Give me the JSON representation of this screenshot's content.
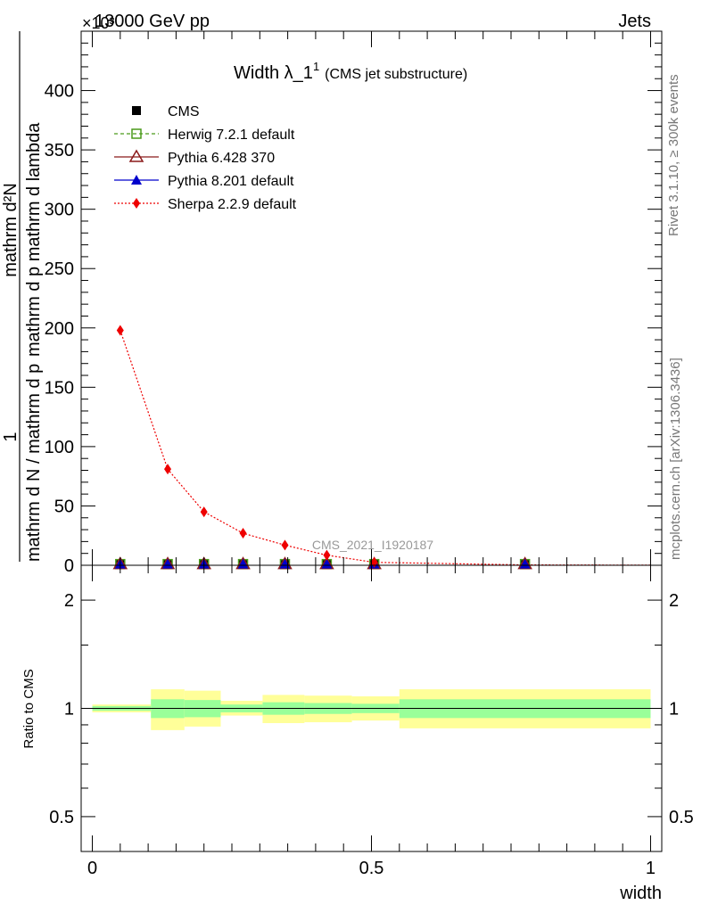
{
  "header": {
    "left": "13000 GeV pp",
    "right": "Jets",
    "exponent": "×10³"
  },
  "side_labels": {
    "rivet": "Rivet 3.1.10, ≥ 300k events",
    "mcplots": "mcplots.cern.ch [arXiv:1306.3436]"
  },
  "watermark": "CMS_2021_I1920187",
  "colors": {
    "herwig": "#4a9a1a",
    "pythia6": "#8b1a1a",
    "pythia8": "#0000cc",
    "sherpa": "#ee0000",
    "band_inner": "#99ff99",
    "band_outer": "#ffff99"
  },
  "chart_data": [
    {
      "type": "line",
      "title_main": "Width λ_1",
      "title_sup": "1",
      "title_sub": "(CMS jet substructure)",
      "ylabel_top": "1",
      "ylabel_numerator": "mathrm d²N",
      "ylabel_den_left": "mathrm d N / mathrm d p",
      "ylabel_den_right": "mathrm d p mathrm d lambda",
      "ylim": [
        0,
        450
      ],
      "yticks": [
        0,
        50,
        100,
        150,
        200,
        250,
        300,
        350,
        400
      ],
      "xlim": [
        -0.02,
        1.02
      ],
      "x": [
        0.05,
        0.135,
        0.2,
        0.27,
        0.345,
        0.42,
        0.505,
        0.775
      ],
      "legend_position": "top-left",
      "series": [
        {
          "name": "CMS",
          "key": "cms",
          "values": [
            1,
            1,
            1,
            1,
            1,
            1,
            1,
            1
          ]
        },
        {
          "name": "Herwig 7.2.1 default",
          "key": "herwig",
          "values": [
            1,
            1,
            1,
            1,
            1,
            1,
            1,
            1
          ]
        },
        {
          "name": "Pythia 6.428 370",
          "key": "pythia6",
          "values": [
            1,
            1,
            1,
            1,
            1,
            1,
            1,
            1
          ]
        },
        {
          "name": "Pythia 8.201 default",
          "key": "pythia8",
          "values": [
            1,
            1,
            1,
            1,
            1,
            1,
            1,
            1
          ]
        },
        {
          "name": "Sherpa 2.2.9 default",
          "key": "sherpa",
          "x": [
            0.05,
            0.135,
            0.2,
            0.27,
            0.345,
            0.42,
            0.505,
            0.775
          ],
          "values": [
            198,
            81,
            45,
            27,
            17,
            8.5,
            2.5,
            0.3
          ]
        }
      ]
    },
    {
      "type": "area",
      "ylabel": "Ratio to CMS",
      "xlabel": "width",
      "scale": "log",
      "ylim": [
        0.4,
        2.5
      ],
      "yticks": [
        0.5,
        1,
        2
      ],
      "yticklabels": [
        "0.5",
        "1",
        "2"
      ],
      "xticks": [
        0,
        0.5,
        1
      ],
      "xticklabels": [
        "0",
        "0.5",
        "1"
      ],
      "reference": 1,
      "bins": [
        {
          "x0": 0.0,
          "x1": 0.105,
          "inner": [
            0.985,
            1.015
          ],
          "outer": [
            0.975,
            1.025
          ]
        },
        {
          "x0": 0.105,
          "x1": 0.165,
          "inner": [
            0.94,
            1.06
          ],
          "outer": [
            0.87,
            1.13
          ]
        },
        {
          "x0": 0.165,
          "x1": 0.23,
          "inner": [
            0.945,
            1.055
          ],
          "outer": [
            0.89,
            1.12
          ]
        },
        {
          "x0": 0.23,
          "x1": 0.305,
          "inner": [
            0.975,
            1.025
          ],
          "outer": [
            0.955,
            1.05
          ]
        },
        {
          "x0": 0.305,
          "x1": 0.38,
          "inner": [
            0.96,
            1.04
          ],
          "outer": [
            0.91,
            1.09
          ]
        },
        {
          "x0": 0.38,
          "x1": 0.465,
          "inner": [
            0.965,
            1.035
          ],
          "outer": [
            0.915,
            1.085
          ]
        },
        {
          "x0": 0.465,
          "x1": 0.55,
          "inner": [
            0.97,
            1.03
          ],
          "outer": [
            0.925,
            1.08
          ]
        },
        {
          "x0": 0.55,
          "x1": 1.0,
          "inner": [
            0.94,
            1.06
          ],
          "outer": [
            0.88,
            1.13
          ]
        }
      ]
    }
  ]
}
